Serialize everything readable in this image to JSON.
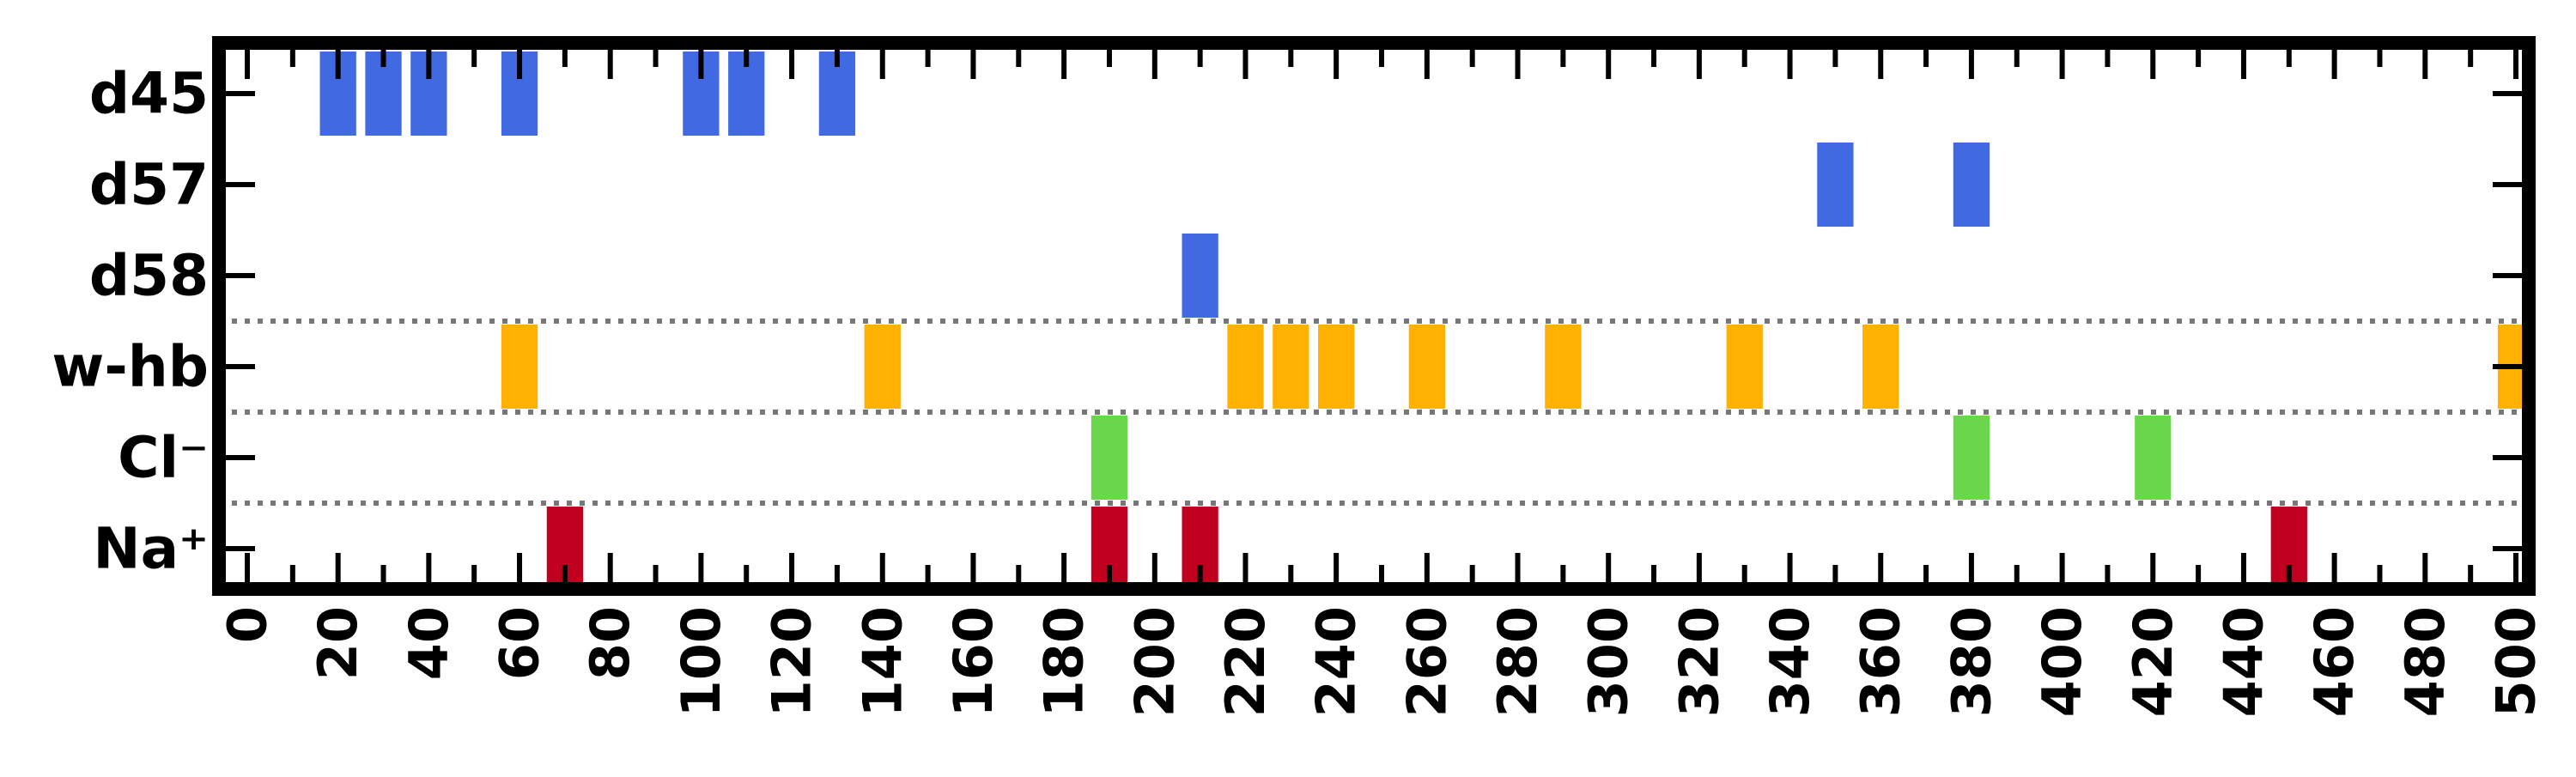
{
  "chart_data": {
    "type": "event-raster",
    "title": "",
    "xlabel": "",
    "ylabel": "",
    "xlim": [
      0,
      500
    ],
    "x_ticks": [
      "0",
      "20",
      "40",
      "60",
      "80",
      "100",
      "120",
      "140",
      "160",
      "180",
      "200",
      "220",
      "240",
      "260",
      "280",
      "300",
      "320",
      "340",
      "360",
      "380",
      "400",
      "420",
      "440",
      "460",
      "480",
      "500"
    ],
    "x_minor_step": 10,
    "rows": [
      {
        "label": "d45",
        "color": "#4169e1",
        "events": [
          20,
          30,
          40,
          60,
          100,
          110,
          130
        ]
      },
      {
        "label": "d57",
        "color": "#4169e1",
        "events": [
          350,
          380
        ]
      },
      {
        "label": "d58",
        "color": "#4169e1",
        "events": [
          210
        ]
      },
      {
        "label": "w-hb",
        "color": "#ffb000",
        "events": [
          60,
          140,
          220,
          230,
          240,
          260,
          290,
          330,
          360,
          500
        ]
      },
      {
        "label": "Cl⁻",
        "color": "#6ad64b",
        "events": [
          190,
          380,
          420
        ]
      },
      {
        "label": "Na⁺",
        "color": "#c10020",
        "events": [
          70,
          190,
          210,
          450
        ]
      }
    ],
    "event_width": 8,
    "group_separators_after_row": [
      2,
      3,
      4
    ],
    "separator_color": "#777777",
    "grid": false,
    "legend": "none"
  }
}
